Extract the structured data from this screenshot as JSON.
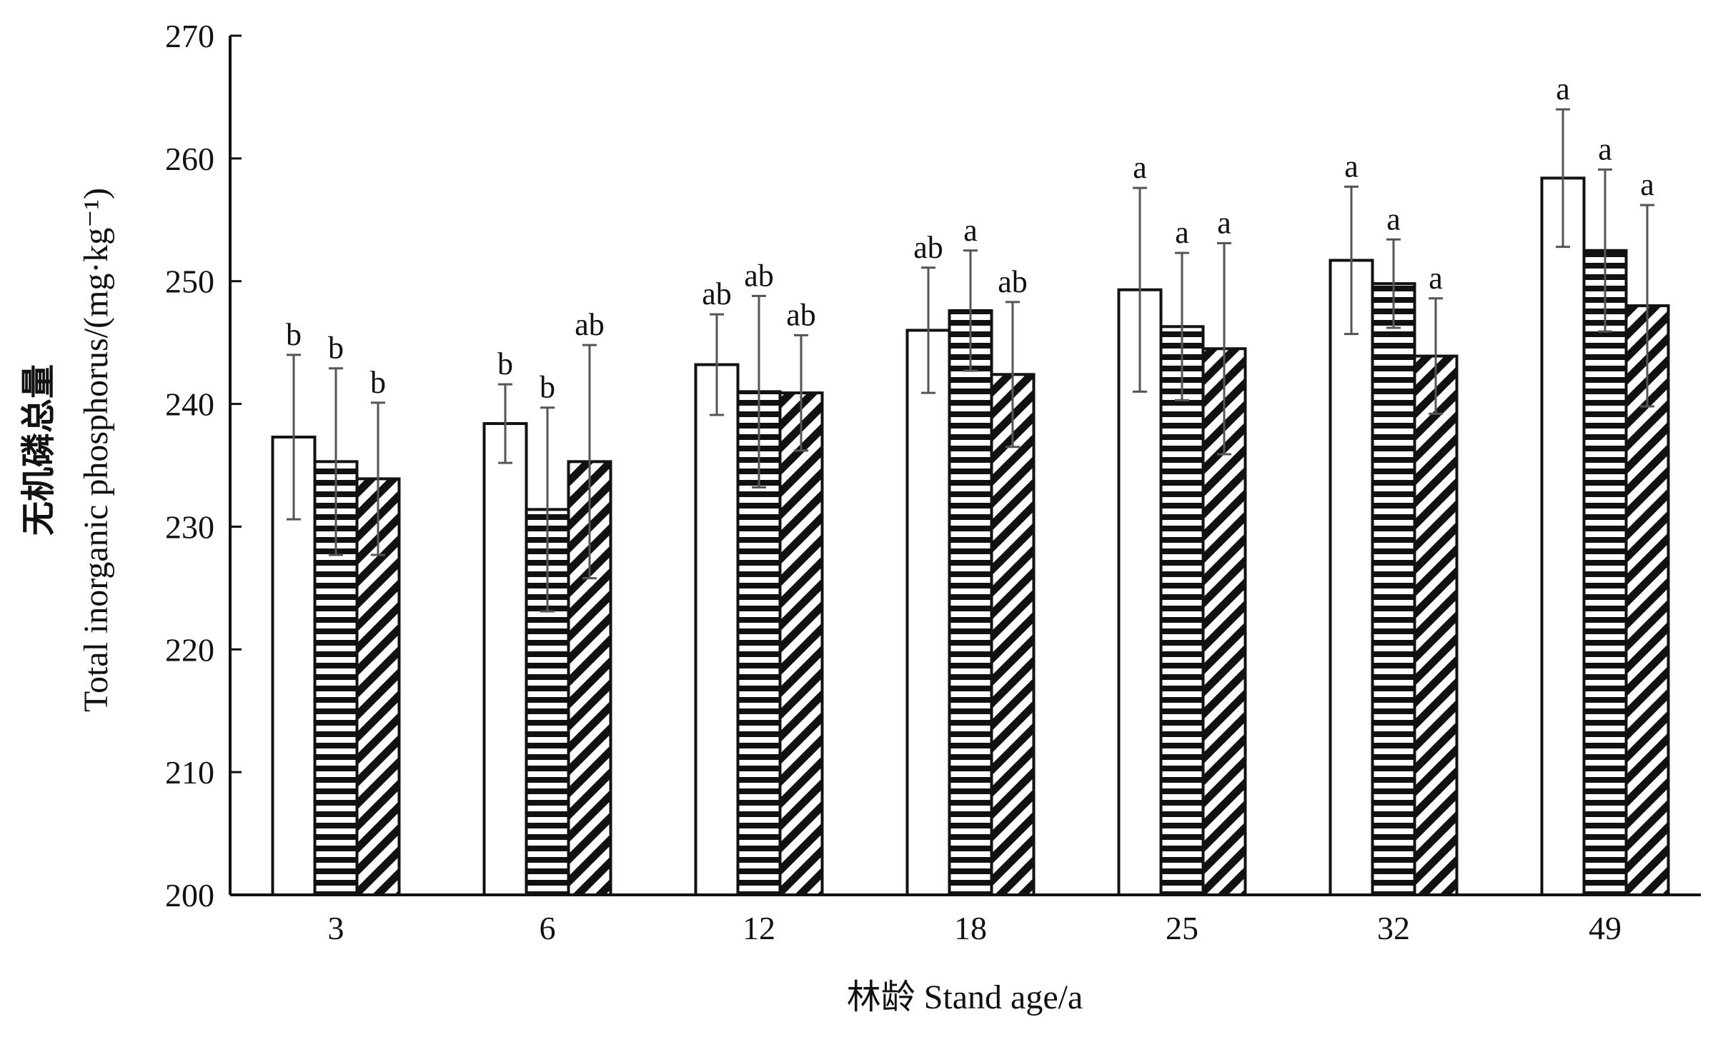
{
  "chart_data": {
    "type": "bar",
    "title": "",
    "xlabel": "林龄 Stand age/a",
    "ylabel_cn": "无机磷总量",
    "ylabel_en": "Total inorganic phosphorus/(mg·kg⁻¹)",
    "ylim": [
      200,
      270
    ],
    "yticks": [
      200,
      210,
      220,
      230,
      240,
      250,
      260,
      270
    ],
    "categories": [
      "3",
      "6",
      "12",
      "18",
      "25",
      "32",
      "49"
    ],
    "grid": false,
    "legend": "none",
    "series": [
      {
        "pattern": "open",
        "values": [
          237.3,
          238.4,
          243.2,
          246.0,
          249.3,
          251.7,
          258.4
        ],
        "error": [
          6.7,
          3.2,
          4.1,
          5.1,
          8.3,
          6.0,
          5.6
        ],
        "labels": [
          "b",
          "b",
          "ab",
          "ab",
          "a",
          "a",
          "a"
        ]
      },
      {
        "pattern": "horizontal-stripes",
        "values": [
          235.3,
          231.4,
          241.0,
          247.6,
          246.3,
          249.8,
          252.5
        ],
        "error": [
          7.6,
          8.3,
          7.8,
          4.9,
          6.0,
          3.6,
          6.6
        ],
        "labels": [
          "b",
          "b",
          "ab",
          "a",
          "a",
          "a",
          "a"
        ]
      },
      {
        "pattern": "diagonal-stripes",
        "values": [
          233.9,
          235.3,
          240.9,
          242.4,
          244.5,
          243.9,
          248.0
        ],
        "error": [
          6.2,
          9.5,
          4.7,
          5.9,
          8.6,
          4.7,
          8.2
        ],
        "labels": [
          "b",
          "ab",
          "ab",
          "ab",
          "a",
          "a",
          "a"
        ]
      }
    ]
  }
}
